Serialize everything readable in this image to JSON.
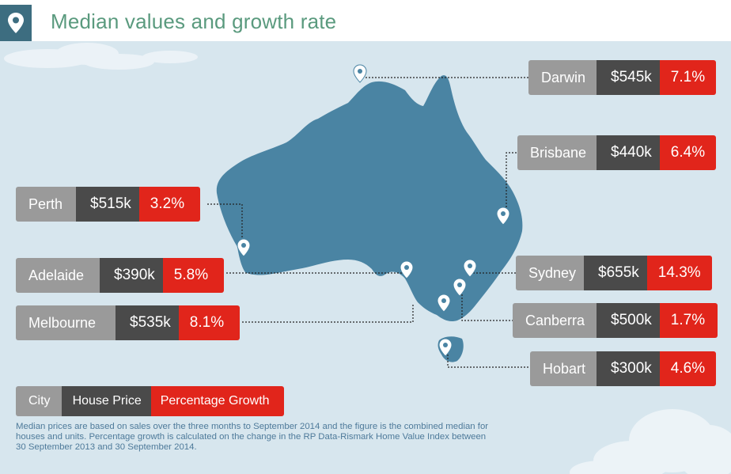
{
  "header": {
    "title": "Median values and growth rate",
    "icon": "map-pin-icon"
  },
  "cities": [
    {
      "id": "darwin",
      "name": "Darwin",
      "price": "$545k",
      "growth": "7.1%"
    },
    {
      "id": "brisbane",
      "name": "Brisbane",
      "price": "$440k",
      "growth": "6.4%"
    },
    {
      "id": "perth",
      "name": "Perth",
      "price": "$515k",
      "growth": "3.2%"
    },
    {
      "id": "adelaide",
      "name": "Adelaide",
      "price": "$390k",
      "growth": "5.8%"
    },
    {
      "id": "sydney",
      "name": "Sydney",
      "price": "$655k",
      "growth": "14.3%"
    },
    {
      "id": "melbourne",
      "name": "Melbourne",
      "price": "$535k",
      "growth": "8.1%"
    },
    {
      "id": "canberra",
      "name": "Canberra",
      "price": "$500k",
      "growth": "1.7%"
    },
    {
      "id": "hobart",
      "name": "Hobart",
      "price": "$300k",
      "growth": "4.6%"
    }
  ],
  "key": {
    "city": "City",
    "price": "House Price",
    "growth": "Percentage Growth"
  },
  "note": "Median prices are based on sales over the three months to September 2014 and the figure is the combined median for houses and units. Percentage growth is calculated on the change in the RP Data-Rismark Home Value Index between 30 September 2013 and 30 September 2014.",
  "colors": {
    "map": "#4a84a3",
    "background": "#d7e6ee",
    "city": "#9a9a9a",
    "price": "#4a4a4a",
    "growth": "#e1251b",
    "title": "#5a9a7e"
  }
}
